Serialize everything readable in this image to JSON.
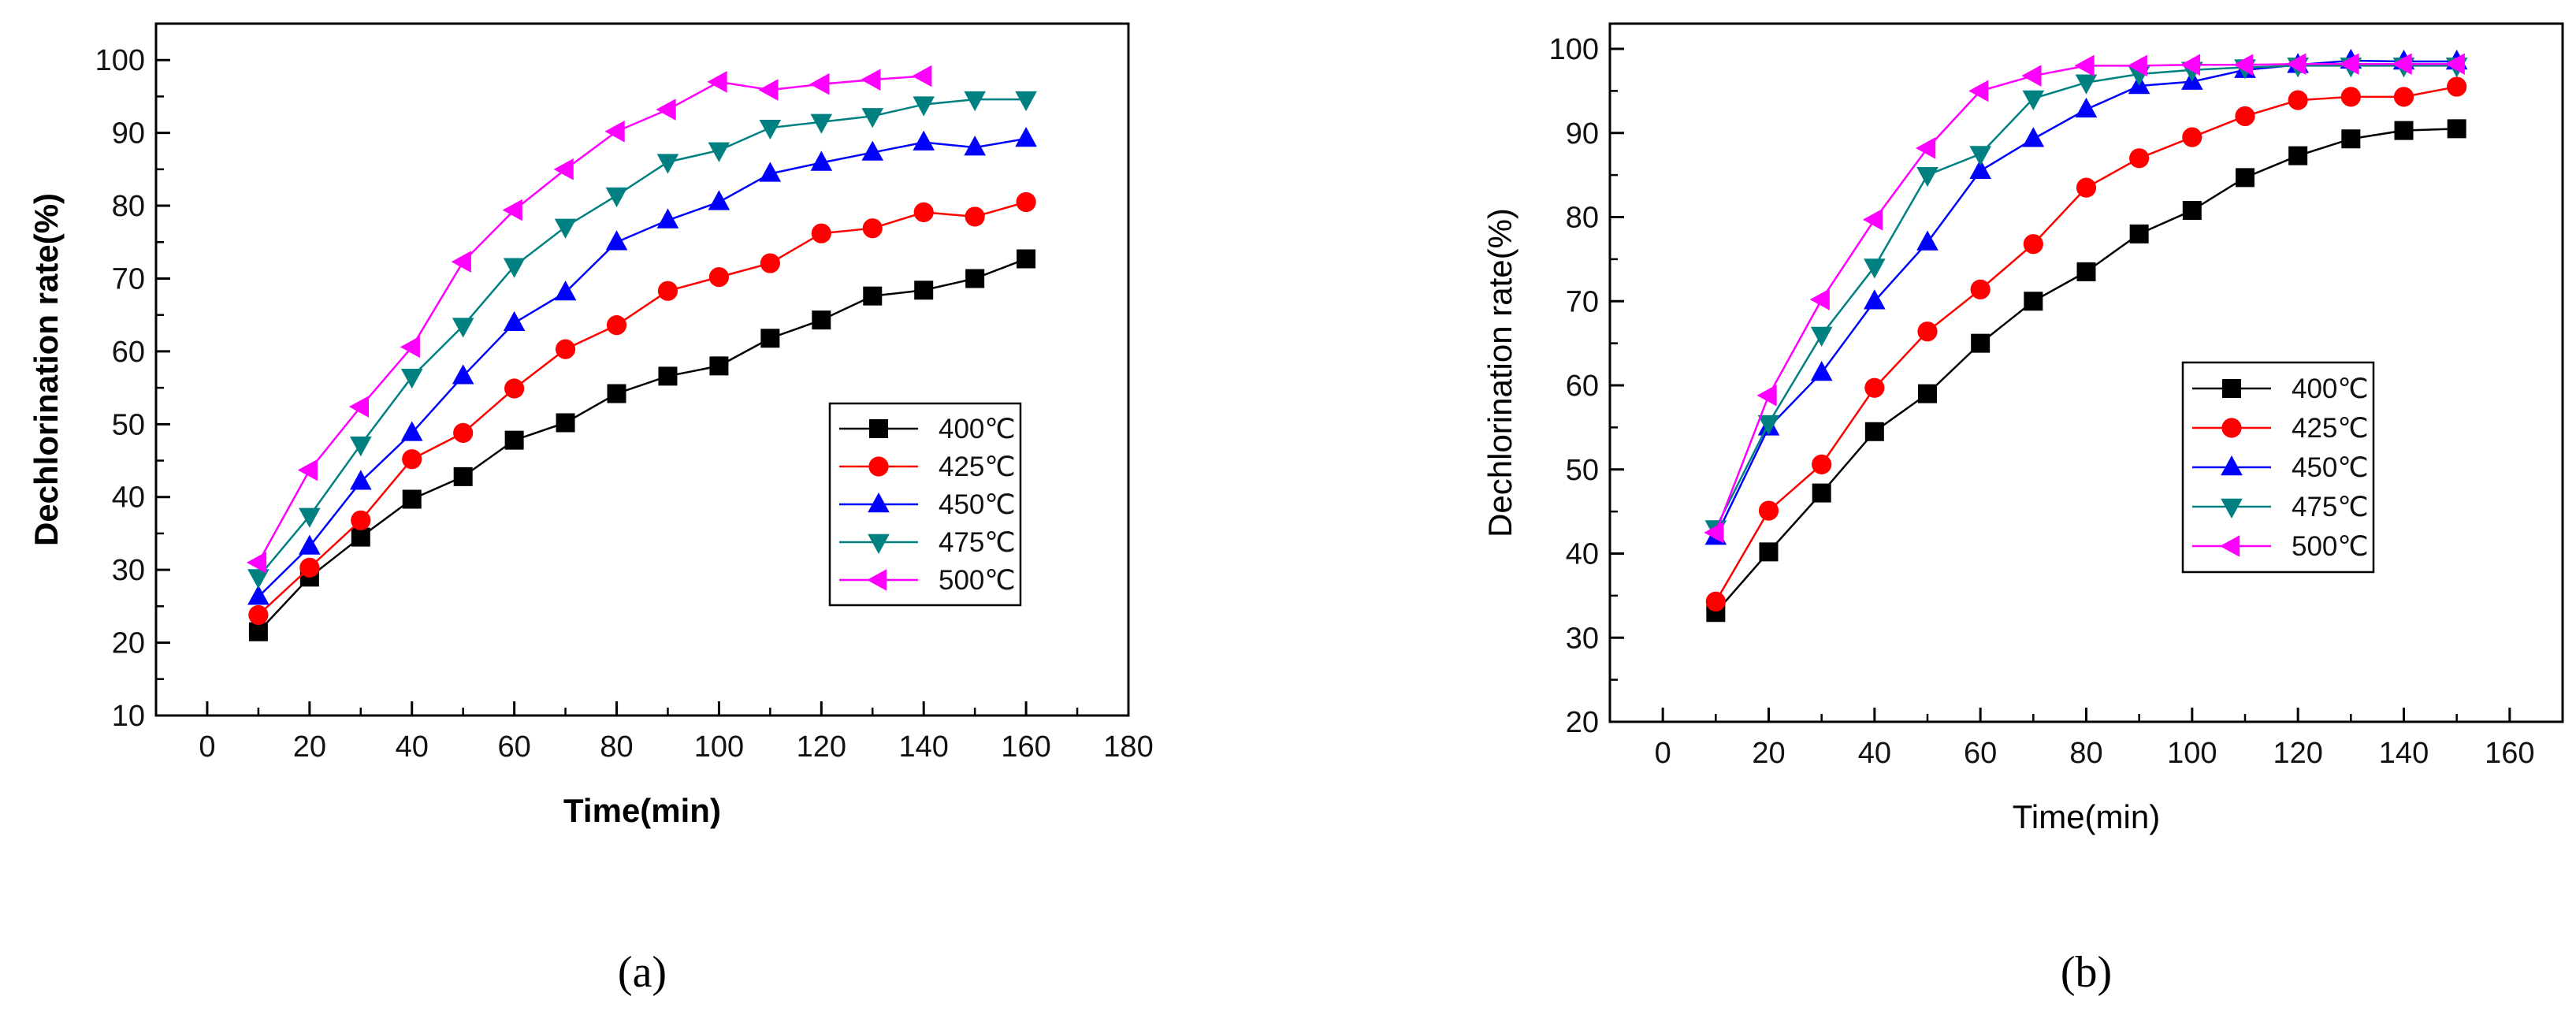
{
  "chart_data": [
    {
      "panel": "(a)",
      "type": "line",
      "xlabel": "Time(min)",
      "ylabel": "Dechlorination rate(%)",
      "xlim": [
        -10,
        180
      ],
      "ylim": [
        10,
        105
      ],
      "xticks": [
        0,
        20,
        40,
        60,
        80,
        100,
        120,
        140,
        160,
        180
      ],
      "yticks": [
        10,
        20,
        30,
        40,
        50,
        60,
        70,
        80,
        90,
        100
      ],
      "legend_position": "right-center",
      "series": [
        {
          "name": "400℃",
          "color": "#000000",
          "marker": "square",
          "x": [
            10,
            20,
            30,
            40,
            50,
            60,
            70,
            80,
            90,
            100,
            110,
            120,
            130,
            140,
            150,
            160
          ],
          "values": [
            21.5,
            29,
            34.5,
            39.7,
            42.8,
            47.8,
            50.2,
            54.2,
            56.6,
            58,
            61.8,
            64.3,
            67.6,
            68.4,
            70,
            72.7
          ]
        },
        {
          "name": "425℃",
          "color": "#ff0000",
          "marker": "circle",
          "x": [
            10,
            20,
            30,
            40,
            50,
            60,
            70,
            80,
            90,
            100,
            110,
            120,
            130,
            140,
            150,
            160
          ],
          "values": [
            23.8,
            30.3,
            36.8,
            45.2,
            48.8,
            54.9,
            60.3,
            63.6,
            68.3,
            70.2,
            72.1,
            76.2,
            76.9,
            79.1,
            78.5,
            80.5
          ]
        },
        {
          "name": "450℃",
          "color": "#0000ff",
          "marker": "triangle-up",
          "x": [
            10,
            20,
            30,
            40,
            50,
            60,
            70,
            80,
            90,
            100,
            110,
            120,
            130,
            140,
            150,
            160
          ],
          "values": [
            26.3,
            33.2,
            42.1,
            48.8,
            56.6,
            63.9,
            68.1,
            75,
            78,
            80.5,
            84.4,
            85.9,
            87.3,
            88.7,
            88,
            89.2
          ]
        },
        {
          "name": "475℃",
          "color": "#008080",
          "marker": "triangle-down",
          "x": [
            10,
            20,
            30,
            40,
            50,
            60,
            70,
            80,
            90,
            100,
            110,
            120,
            130,
            140,
            150,
            160
          ],
          "values": [
            29,
            37.4,
            47.2,
            56.5,
            63.5,
            71.7,
            77.1,
            81.4,
            86,
            87.6,
            90.7,
            91.5,
            92.3,
            93.9,
            94.6,
            94.6
          ]
        },
        {
          "name": "500℃",
          "color": "#ff00ff",
          "marker": "triangle-left",
          "x": [
            10,
            20,
            30,
            40,
            50,
            60,
            70,
            80,
            90,
            100,
            110,
            120,
            130,
            140
          ],
          "values": [
            31,
            43.7,
            52.4,
            60.6,
            72.3,
            79.4,
            85,
            90.2,
            93.2,
            97,
            95.9,
            96.7,
            97.3,
            97.8
          ]
        }
      ]
    },
    {
      "panel": "(b)",
      "type": "line",
      "xlabel": "Time(min)",
      "ylabel": "Dechlorination rate(%)",
      "xlim": [
        -10,
        170
      ],
      "ylim": [
        20,
        103
      ],
      "xticks": [
        0,
        20,
        40,
        60,
        80,
        100,
        120,
        140,
        160
      ],
      "yticks": [
        20,
        30,
        40,
        50,
        60,
        70,
        80,
        90,
        100
      ],
      "legend_position": "right-center",
      "series": [
        {
          "name": "400℃",
          "color": "#000000",
          "marker": "square",
          "x": [
            10,
            20,
            30,
            40,
            50,
            60,
            70,
            80,
            90,
            100,
            110,
            120,
            130,
            140,
            150
          ],
          "values": [
            33,
            40.2,
            47.2,
            54.5,
            59,
            65,
            70,
            73.5,
            78,
            80.8,
            84.7,
            87.3,
            89.3,
            90.3,
            90.5
          ]
        },
        {
          "name": "425℃",
          "color": "#ff0000",
          "marker": "circle",
          "x": [
            10,
            20,
            30,
            40,
            50,
            60,
            70,
            80,
            90,
            100,
            110,
            120,
            130,
            140,
            150
          ],
          "values": [
            34.3,
            45.1,
            50.6,
            59.7,
            66.4,
            71.4,
            76.8,
            83.5,
            87,
            89.5,
            92,
            93.9,
            94.3,
            94.3,
            95.5
          ]
        },
        {
          "name": "450℃",
          "color": "#0000ff",
          "marker": "triangle-up",
          "x": [
            10,
            20,
            30,
            40,
            50,
            60,
            70,
            80,
            90,
            100,
            110,
            120,
            130,
            140,
            150
          ],
          "values": [
            42,
            55,
            61.5,
            70,
            77,
            85.5,
            89.3,
            92.8,
            95.6,
            96.1,
            97.5,
            98.1,
            98.6,
            98.5,
            98.5
          ]
        },
        {
          "name": "475℃",
          "color": "#008080",
          "marker": "triangle-down",
          "x": [
            10,
            20,
            30,
            40,
            50,
            60,
            70,
            80,
            90,
            100,
            110,
            120,
            130,
            140,
            150
          ],
          "values": [
            43,
            55.5,
            66,
            74.1,
            85,
            87.5,
            94.1,
            96,
            97,
            97.5,
            97.8,
            98,
            98,
            98,
            98
          ]
        },
        {
          "name": "500℃",
          "color": "#ff00ff",
          "marker": "triangle-left",
          "x": [
            10,
            20,
            30,
            40,
            50,
            60,
            70,
            80,
            90,
            100,
            110,
            120,
            130,
            140,
            150
          ],
          "values": [
            42.5,
            58.8,
            70.2,
            79.7,
            88.2,
            95,
            96.8,
            98,
            98,
            98.1,
            98.1,
            98.2,
            98.2,
            98.2,
            98.2
          ]
        }
      ]
    }
  ]
}
